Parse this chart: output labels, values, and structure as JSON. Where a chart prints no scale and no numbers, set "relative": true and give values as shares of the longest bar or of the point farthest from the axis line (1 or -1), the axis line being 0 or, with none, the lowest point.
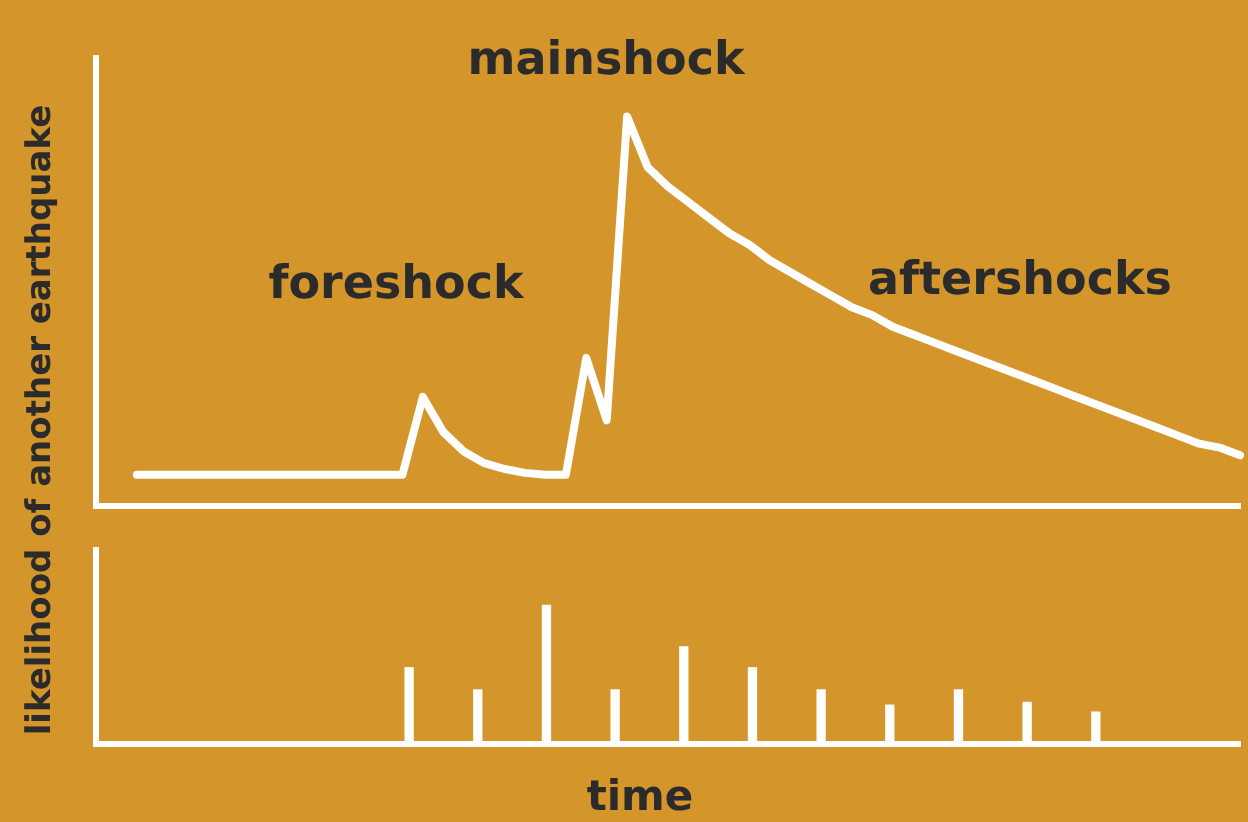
{
  "chart_data": [
    {
      "type": "line",
      "relative": true,
      "ylabel": "likelihood of another earthquake",
      "annotations": [
        "foreshock",
        "mainshock",
        "aftershocks"
      ],
      "tick_labels": false,
      "grid": false,
      "legend": false,
      "marker": "none",
      "line_style": "solid",
      "categories": [
        null,
        null,
        null,
        null,
        null,
        null,
        null,
        null,
        null,
        null,
        null,
        null,
        null,
        null,
        null,
        null,
        null,
        null,
        null,
        null,
        null,
        null,
        null,
        null,
        null,
        null,
        null,
        null,
        null,
        null,
        null,
        null,
        null,
        null,
        null,
        null,
        null,
        null,
        null,
        null,
        null,
        null,
        null,
        null,
        null,
        null,
        null,
        null,
        null,
        null,
        null,
        null,
        null,
        null,
        null,
        null,
        null
      ],
      "series": [
        {
          "color": "#ffffff",
          "values": [
            null,
            null,
            0.08,
            0.08,
            0.08,
            0.08,
            0.08,
            0.08,
            0.08,
            0.08,
            0.08,
            0.08,
            0.08,
            0.08,
            0.08,
            0.08,
            0.28,
            0.19,
            0.14,
            0.11,
            0.095,
            0.085,
            0.08,
            0.08,
            0.38,
            0.22,
            1,
            0.87,
            0.82,
            0.78,
            0.74,
            0.7,
            0.67,
            0.63,
            0.6,
            0.57,
            0.54,
            0.51,
            0.49,
            0.46,
            0.44,
            0.42,
            0.4,
            0.38,
            0.36,
            0.34,
            0.32,
            0.3,
            0.28,
            0.26,
            0.24,
            0.22,
            0.2,
            0.18,
            0.16,
            0.15,
            0.13
          ]
        }
      ]
    },
    {
      "type": "bar",
      "relative": true,
      "xlabel": "time",
      "tick_labels": false,
      "grid": false,
      "legend": false,
      "categories": [
        null,
        null,
        null,
        null,
        null,
        null,
        null,
        null,
        null,
        null,
        null
      ],
      "series": [
        {
          "color": "#ffffff",
          "values": [
            0.55,
            0.39,
            1,
            0.39,
            0.7,
            0.55,
            0.39,
            0.28,
            0.39,
            0.3,
            0.23
          ]
        }
      ]
    }
  ]
}
